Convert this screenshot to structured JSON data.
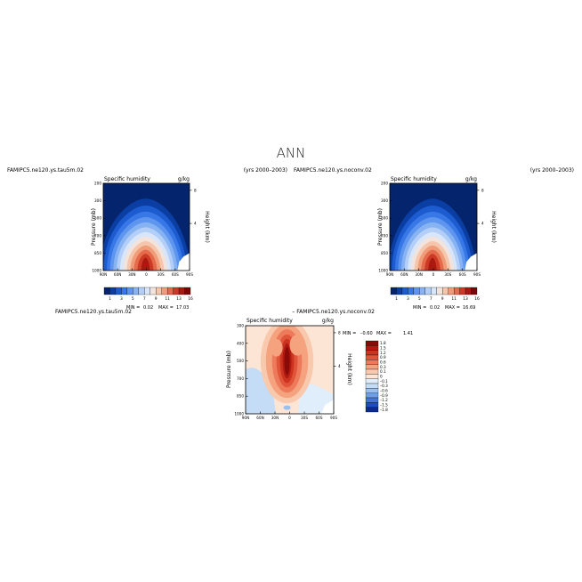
{
  "page_title": "ANN",
  "chart_data": [
    {
      "type": "heatmap",
      "case_name": "FAMIPC5.ne120.ys.tau5m.02",
      "years": "(yrs 2000–2003)",
      "title": "Specific humidity",
      "units": "g/kg",
      "ylabel": "Pressure (mb)",
      "y2label": "Height (km)",
      "x_ticks": [
        "90N",
        "60N",
        "30N",
        "0",
        "30S",
        "60S",
        "90S"
      ],
      "y_ticks": [
        "200",
        "300",
        "500",
        "700",
        "850",
        "1000"
      ],
      "y2_ticks": [
        "8",
        "4"
      ],
      "min_label": "MIN =",
      "min_value": "0.02",
      "max_label": "MAX =",
      "max_value": "17.03",
      "colorbar_labels": [
        "1",
        "3",
        "5",
        "7",
        "9",
        "11",
        "13",
        "16"
      ],
      "peak": {
        "lat": 0,
        "pressure": 1000,
        "value": 17.03
      },
      "colors": [
        "#05246e",
        "#0b3ea3",
        "#1c5bd0",
        "#3777e6",
        "#5d95ef",
        "#88b3f3",
        "#b3cff7",
        "#d9e6fa",
        "#f2e4dc",
        "#f5c6ac",
        "#f09c78",
        "#e46b4b",
        "#cc3a26",
        "#a9190f",
        "#7a0705"
      ]
    },
    {
      "type": "heatmap",
      "case_name": "FAMIPC5.ne120.ys.noconv.02",
      "years": "(yrs 2000–2003)",
      "title": "Specific humidity",
      "units": "g/kg",
      "ylabel": "Pressure (mb)",
      "y2label": "Height (km)",
      "x_ticks": [
        "90N",
        "60N",
        "30N",
        "0",
        "30S",
        "60S",
        "90S"
      ],
      "y_ticks": [
        "200",
        "300",
        "500",
        "700",
        "850",
        "1000"
      ],
      "y2_ticks": [
        "8",
        "4"
      ],
      "min_label": "MIN =",
      "min_value": "0.02",
      "max_label": "MAX =",
      "max_value": "16.69",
      "colorbar_labels": [
        "1",
        "3",
        "5",
        "7",
        "9",
        "11",
        "13",
        "16"
      ],
      "peak": {
        "lat": 0,
        "pressure": 1000,
        "value": 16.69
      }
    },
    {
      "type": "heatmap",
      "case_name": "FAMIPC5.ne120.ys.tau5m.02",
      "diff_label": "– FAMIPC5.ne120.ys.noconv.02",
      "title": "Specific humidity",
      "units": "g/kg",
      "ylabel": "Pressure (mb)",
      "y2label": "Height (km)",
      "x_ticks": [
        "90N",
        "60N",
        "30N",
        "0",
        "30S",
        "60S",
        "90S"
      ],
      "y_ticks": [
        "300",
        "400",
        "500",
        "700",
        "850",
        "1000"
      ],
      "y2_ticks": [
        "8",
        "4"
      ],
      "min_label": "MIN =",
      "min_value": "–0.60",
      "max_label": "MAX =",
      "max_value": "1.41",
      "colorbar_labels": [
        "1.8",
        "1.5",
        "1.2",
        "0.9",
        "0.6",
        "0.3",
        "0.1",
        "0",
        "–0.1",
        "–0.3",
        "–0.6",
        "–0.9",
        "–1.2",
        "–1.5",
        "–1.8"
      ],
      "colors": [
        "#8a0a08",
        "#b01a10",
        "#cc3420",
        "#e0553a",
        "#ed7a5a",
        "#f5a27f",
        "#f9c9ae",
        "#fde5d6",
        "#dfeefa",
        "#c4dcf5",
        "#99c0ef",
        "#6e9fe6",
        "#4277d8",
        "#1c4fbd",
        "#0a2c8c"
      ]
    }
  ]
}
